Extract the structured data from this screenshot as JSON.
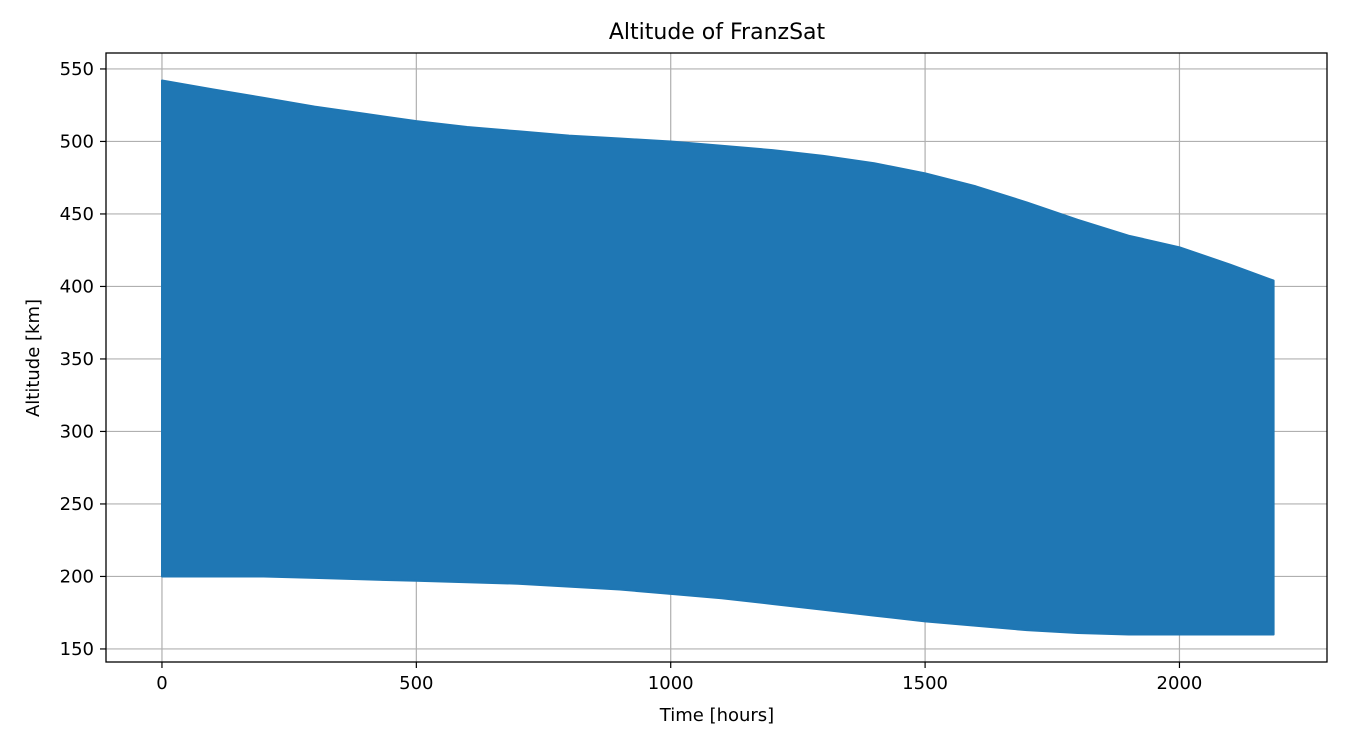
{
  "chart_data": {
    "type": "area",
    "title": "Altitude of FranzSat",
    "xlabel": "Time [hours]",
    "ylabel": "Altitude [km]",
    "xlim": [
      -110,
      2290
    ],
    "ylim": [
      141,
      561
    ],
    "xticks": [
      0,
      500,
      1000,
      1500,
      2000
    ],
    "yticks": [
      150,
      200,
      250,
      300,
      350,
      400,
      450,
      500,
      550
    ],
    "grid": true,
    "color": "#1f77b4",
    "series": [
      {
        "x": [
          0,
          100,
          200,
          300,
          400,
          500,
          600,
          700,
          800,
          900,
          1000,
          1100,
          1200,
          1300,
          1400,
          1500,
          1600,
          1700,
          1800,
          1900,
          2000,
          2100,
          2185
        ],
        "apogee": [
          542,
          536,
          530,
          524,
          519,
          514,
          510,
          507,
          504,
          502,
          500,
          497,
          494,
          490,
          485,
          478,
          469,
          458,
          446,
          435,
          427,
          415,
          404
        ],
        "perigee": [
          200,
          200,
          200,
          199,
          198,
          197,
          196,
          195,
          193,
          191,
          188,
          185,
          181,
          177,
          173,
          169,
          166,
          163,
          161,
          160,
          160,
          160,
          160
        ]
      }
    ]
  }
}
